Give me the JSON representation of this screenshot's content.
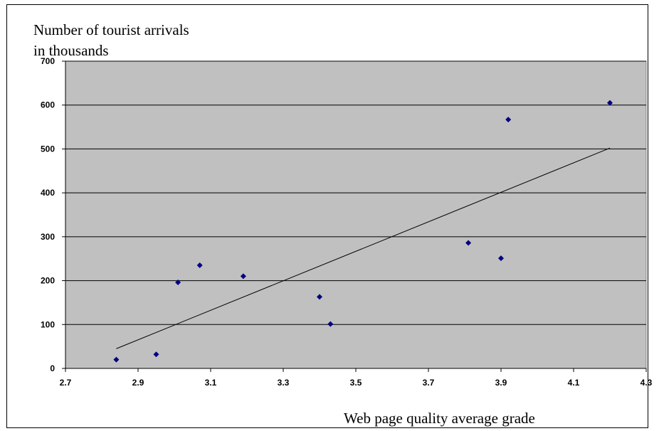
{
  "chart_data": {
    "type": "scatter",
    "ylabel_lines": [
      "Number of tourist arrivals",
      "in thousands"
    ],
    "xlabel": "Web page quality average grade",
    "xlim": [
      2.7,
      4.3
    ],
    "ylim": [
      0,
      700
    ],
    "xticks": [
      "2.7",
      "2.9",
      "3.1",
      "3.3",
      "3.5",
      "3.7",
      "3.9",
      "4.1",
      "4.3"
    ],
    "yticks": [
      "0",
      "100",
      "200",
      "300",
      "400",
      "500",
      "600",
      "700"
    ],
    "grid": "horizontal",
    "legend": "none",
    "colors": {
      "plot_background": "#c0c0c0",
      "point": "#000080",
      "trendline": "#000000"
    },
    "points": [
      {
        "x": 2.84,
        "y": 20
      },
      {
        "x": 2.95,
        "y": 32
      },
      {
        "x": 3.01,
        "y": 196
      },
      {
        "x": 3.07,
        "y": 235
      },
      {
        "x": 3.19,
        "y": 210
      },
      {
        "x": 3.4,
        "y": 163
      },
      {
        "x": 3.43,
        "y": 101
      },
      {
        "x": 3.81,
        "y": 286
      },
      {
        "x": 3.9,
        "y": 251
      },
      {
        "x": 3.92,
        "y": 567
      },
      {
        "x": 4.2,
        "y": 605
      }
    ],
    "trendline": {
      "type": "linear",
      "x": [
        2.84,
        4.2
      ],
      "y": [
        45,
        502
      ]
    }
  }
}
